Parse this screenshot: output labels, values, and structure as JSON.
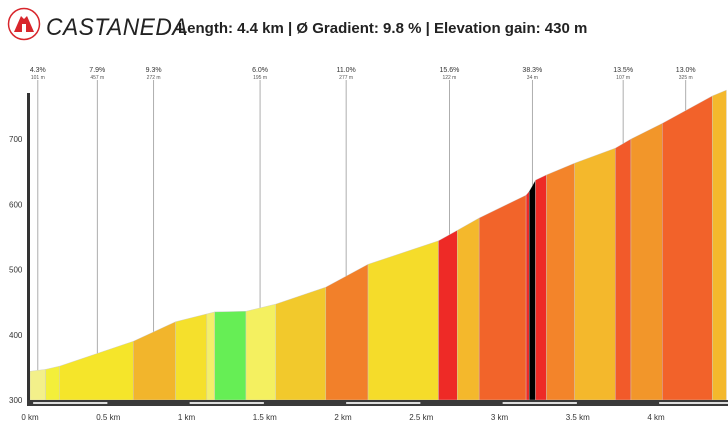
{
  "header": {
    "title": "CASTANEDA",
    "stats": "Length: 4.4 km  |  Ø Gradient: 9.8 %  |  Elevation gain: 430 m",
    "logo": "red mountain circle logo"
  },
  "chart_data": {
    "type": "area",
    "title": "",
    "xlabel": "",
    "ylabel": "",
    "xlim": [
      0,
      4.45
    ],
    "ylim": [
      300,
      780
    ],
    "x_ticks": [
      "0 km",
      "0.5 km",
      "1 km",
      "1.5 km",
      "2 km",
      "2.5 km",
      "3 km",
      "3.5 km",
      "4 km"
    ],
    "x_tick_values": [
      0,
      0.5,
      1,
      1.5,
      2,
      2.5,
      3,
      3.5,
      4
    ],
    "y_ticks": [
      300,
      400,
      500,
      600,
      700
    ],
    "grid": false,
    "profile_km": [
      0,
      0.1,
      0.19,
      0.66,
      0.93,
      1.13,
      1.18,
      1.38,
      1.57,
      1.89,
      2.16,
      2.61,
      2.73,
      2.87,
      3.17,
      3.19,
      3.23,
      3.3,
      3.48,
      3.74,
      3.84,
      4.04,
      4.36,
      4.45
    ],
    "profile_elev": [
      344,
      347,
      352,
      390,
      420,
      432,
      435,
      436,
      447,
      473,
      508,
      544,
      560,
      579,
      614,
      620,
      637,
      645,
      663,
      686,
      700,
      724,
      766,
      775
    ],
    "segment_colors": [
      "#f3f08a",
      "#f3ef3a",
      "#f5e52a",
      "#f2b52c",
      "#f5e02c",
      "#f3ef6a",
      "#66ee55",
      "#f4f060",
      "#f2c92c",
      "#f2802a",
      "#f5dc2a",
      "#ee2a26",
      "#f4b82c",
      "#f2642a",
      "#ee2a26",
      "#000000",
      "#ee2a26",
      "#f3842a",
      "#f4b82c",
      "#f25a2a",
      "#f2962a",
      "#f2622a",
      "#f4b82c"
    ],
    "annotations": [
      {
        "km": 0.05,
        "gradient": "4.3%",
        "length": "101 m"
      },
      {
        "km": 0.43,
        "gradient": "7.9%",
        "length": "457 m"
      },
      {
        "km": 0.79,
        "gradient": "9.3%",
        "length": "272 m"
      },
      {
        "km": 1.47,
        "gradient": "6.0%",
        "length": "195 m"
      },
      {
        "km": 2.02,
        "gradient": "11.0%",
        "length": "277 m"
      },
      {
        "km": 2.68,
        "gradient": "15.6%",
        "length": "122 m"
      },
      {
        "km": 3.21,
        "gradient": "38.3%",
        "length": "34 m"
      },
      {
        "km": 3.79,
        "gradient": "13.5%",
        "length": "107 m"
      },
      {
        "km": 4.19,
        "gradient": "13.0%",
        "length": "325 m"
      }
    ]
  }
}
